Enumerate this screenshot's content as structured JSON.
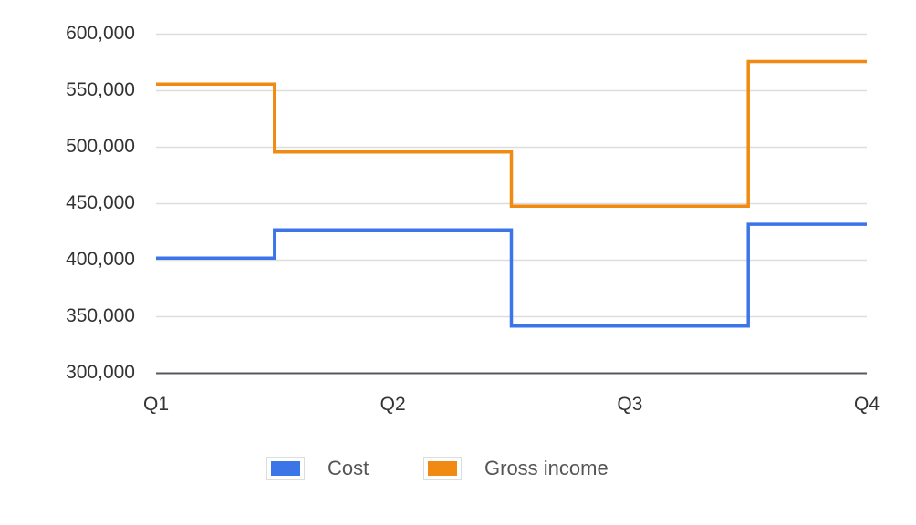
{
  "chart_data": {
    "type": "line",
    "subtype": "step",
    "title": "",
    "xlabel": "",
    "ylabel": "",
    "categories": [
      "Q1",
      "Q2",
      "Q3",
      "Q4"
    ],
    "series": [
      {
        "name": "Cost",
        "color": "#3b75e8",
        "values": [
          401000,
          426000,
          341000,
          431000
        ]
      },
      {
        "name": "Gross income",
        "color": "#f08a12",
        "values": [
          555000,
          495000,
          447000,
          575000
        ]
      }
    ],
    "ylim": [
      300000,
      600000
    ],
    "yticks": [
      "300,000",
      "350,000",
      "400,000",
      "450,000",
      "500,000",
      "550,000",
      "600,000"
    ],
    "grid": true,
    "legend_position": "bottom"
  },
  "legend": {
    "items": [
      {
        "label": "Cost",
        "color": "#3b75e8"
      },
      {
        "label": "Gross income",
        "color": "#f08a12"
      }
    ]
  }
}
